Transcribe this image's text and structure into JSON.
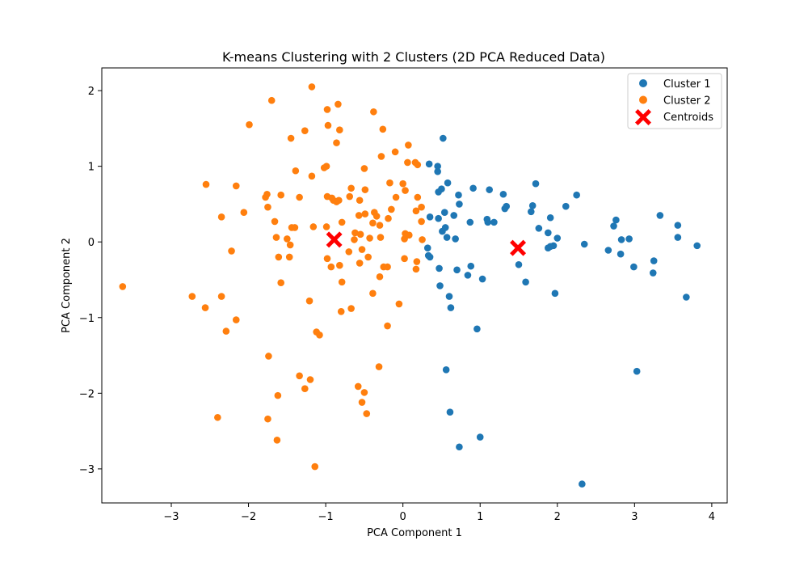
{
  "chart_data": {
    "type": "scatter",
    "title": "K-means Clustering with 2 Clusters (2D PCA Reduced Data)",
    "xlabel": "PCA Component 1",
    "ylabel": "PCA Component 2",
    "xlim": [
      -3.9,
      4.2
    ],
    "ylim": [
      -3.45,
      2.3
    ],
    "xticks": [
      -3,
      -2,
      -1,
      0,
      1,
      2,
      3,
      4
    ],
    "yticks": [
      -3,
      -2,
      -1,
      0,
      1,
      2
    ],
    "grid": false,
    "legend_position": "top-right",
    "series": [
      {
        "name": "Cluster 1",
        "color": "#1f77b4",
        "marker": "circle",
        "points": [
          [
            0.52,
            1.37
          ],
          [
            0.34,
            1.03
          ],
          [
            0.45,
            1.0
          ],
          [
            0.45,
            0.93
          ],
          [
            0.58,
            0.78
          ],
          [
            0.5,
            0.7
          ],
          [
            0.46,
            0.66
          ],
          [
            0.72,
            0.62
          ],
          [
            0.91,
            0.71
          ],
          [
            1.12,
            0.69
          ],
          [
            1.3,
            0.63
          ],
          [
            1.72,
            0.77
          ],
          [
            2.25,
            0.62
          ],
          [
            1.68,
            0.48
          ],
          [
            2.11,
            0.47
          ],
          [
            1.34,
            0.47
          ],
          [
            1.32,
            0.44
          ],
          [
            1.66,
            0.4
          ],
          [
            0.73,
            0.5
          ],
          [
            0.54,
            0.39
          ],
          [
            0.66,
            0.35
          ],
          [
            0.35,
            0.33
          ],
          [
            0.46,
            0.31
          ],
          [
            0.87,
            0.26
          ],
          [
            1.09,
            0.3
          ],
          [
            1.1,
            0.26
          ],
          [
            1.18,
            0.26
          ],
          [
            1.76,
            0.18
          ],
          [
            1.91,
            0.32
          ],
          [
            2.76,
            0.29
          ],
          [
            2.73,
            0.21
          ],
          [
            3.33,
            0.35
          ],
          [
            3.56,
            0.22
          ],
          [
            0.51,
            0.14
          ],
          [
            0.55,
            0.19
          ],
          [
            0.57,
            0.06
          ],
          [
            0.68,
            0.04
          ],
          [
            1.88,
            0.12
          ],
          [
            2.0,
            0.05
          ],
          [
            2.83,
            0.03
          ],
          [
            2.93,
            0.04
          ],
          [
            3.56,
            0.06
          ],
          [
            2.35,
            -0.03
          ],
          [
            1.88,
            -0.08
          ],
          [
            1.91,
            -0.06
          ],
          [
            1.95,
            -0.05
          ],
          [
            3.81,
            -0.05
          ],
          [
            0.32,
            -0.08
          ],
          [
            0.33,
            -0.18
          ],
          [
            0.35,
            -0.2
          ],
          [
            2.66,
            -0.11
          ],
          [
            2.82,
            -0.16
          ],
          [
            3.25,
            -0.25
          ],
          [
            1.5,
            -0.3
          ],
          [
            2.99,
            -0.33
          ],
          [
            3.24,
            -0.41
          ],
          [
            0.47,
            -0.35
          ],
          [
            0.7,
            -0.37
          ],
          [
            0.88,
            -0.32
          ],
          [
            0.84,
            -0.44
          ],
          [
            1.03,
            -0.49
          ],
          [
            1.59,
            -0.53
          ],
          [
            0.48,
            -0.58
          ],
          [
            0.6,
            -0.72
          ],
          [
            1.97,
            -0.68
          ],
          [
            3.67,
            -0.73
          ],
          [
            0.62,
            -0.87
          ],
          [
            0.96,
            -1.15
          ],
          [
            0.56,
            -1.69
          ],
          [
            3.03,
            -1.71
          ],
          [
            0.61,
            -2.25
          ],
          [
            1.0,
            -2.58
          ],
          [
            0.73,
            -2.71
          ],
          [
            2.32,
            -3.2
          ]
        ]
      },
      {
        "name": "Cluster 2",
        "color": "#ff7f0e",
        "marker": "circle",
        "points": [
          [
            -1.18,
            2.05
          ],
          [
            -1.7,
            1.87
          ],
          [
            -0.84,
            1.82
          ],
          [
            -0.98,
            1.75
          ],
          [
            -0.38,
            1.72
          ],
          [
            -1.99,
            1.55
          ],
          [
            -0.97,
            1.54
          ],
          [
            -0.82,
            1.48
          ],
          [
            -1.27,
            1.47
          ],
          [
            -0.26,
            1.49
          ],
          [
            -1.45,
            1.37
          ],
          [
            -0.86,
            1.31
          ],
          [
            0.07,
            1.28
          ],
          [
            -0.1,
            1.19
          ],
          [
            -0.28,
            1.13
          ],
          [
            0.06,
            1.05
          ],
          [
            0.16,
            1.05
          ],
          [
            0.19,
            1.02
          ],
          [
            -1.02,
            0.98
          ],
          [
            -0.99,
            1.0
          ],
          [
            -0.5,
            0.97
          ],
          [
            -1.39,
            0.94
          ],
          [
            -1.18,
            0.87
          ],
          [
            -0.17,
            0.78
          ],
          [
            0.0,
            0.77
          ],
          [
            -2.55,
            0.76
          ],
          [
            -2.16,
            0.74
          ],
          [
            -0.67,
            0.71
          ],
          [
            -0.49,
            0.69
          ],
          [
            0.03,
            0.68
          ],
          [
            -1.76,
            0.63
          ],
          [
            -1.58,
            0.62
          ],
          [
            -1.78,
            0.59
          ],
          [
            -1.34,
            0.59
          ],
          [
            -0.98,
            0.6
          ],
          [
            -0.92,
            0.58
          ],
          [
            -0.69,
            0.6
          ],
          [
            -0.09,
            0.59
          ],
          [
            0.19,
            0.59
          ],
          [
            -0.9,
            0.55
          ],
          [
            -0.86,
            0.53
          ],
          [
            -0.83,
            0.55
          ],
          [
            -0.56,
            0.55
          ],
          [
            -1.75,
            0.46
          ],
          [
            0.24,
            0.46
          ],
          [
            -0.15,
            0.43
          ],
          [
            0.17,
            0.41
          ],
          [
            -2.06,
            0.39
          ],
          [
            -0.37,
            0.39
          ],
          [
            -0.34,
            0.34
          ],
          [
            -0.57,
            0.35
          ],
          [
            -0.49,
            0.37
          ],
          [
            -0.19,
            0.31
          ],
          [
            -2.35,
            0.33
          ],
          [
            -1.66,
            0.27
          ],
          [
            -0.79,
            0.26
          ],
          [
            -0.39,
            0.25
          ],
          [
            -0.3,
            0.22
          ],
          [
            0.24,
            0.27
          ],
          [
            -1.44,
            0.19
          ],
          [
            -1.4,
            0.19
          ],
          [
            -1.16,
            0.2
          ],
          [
            -0.99,
            0.2
          ],
          [
            -0.62,
            0.12
          ],
          [
            -0.55,
            0.1
          ],
          [
            0.03,
            0.11
          ],
          [
            0.08,
            0.09
          ],
          [
            -1.64,
            0.06
          ],
          [
            -1.5,
            0.04
          ],
          [
            -0.63,
            0.03
          ],
          [
            -0.43,
            0.05
          ],
          [
            -0.29,
            0.06
          ],
          [
            0.02,
            0.04
          ],
          [
            0.25,
            0.03
          ],
          [
            -1.46,
            -0.04
          ],
          [
            -0.53,
            -0.1
          ],
          [
            -0.7,
            -0.13
          ],
          [
            -0.98,
            -0.22
          ],
          [
            -0.45,
            -0.2
          ],
          [
            -1.61,
            -0.2
          ],
          [
            -1.47,
            -0.2
          ],
          [
            -2.22,
            -0.12
          ],
          [
            -0.56,
            -0.28
          ],
          [
            0.02,
            -0.22
          ],
          [
            0.18,
            -0.26
          ],
          [
            -0.25,
            -0.33
          ],
          [
            -0.2,
            -0.33
          ],
          [
            -0.82,
            -0.31
          ],
          [
            -0.93,
            -0.33
          ],
          [
            0.17,
            -0.36
          ],
          [
            -0.3,
            -0.46
          ],
          [
            -0.79,
            -0.53
          ],
          [
            -1.58,
            -0.54
          ],
          [
            -3.63,
            -0.59
          ],
          [
            -0.39,
            -0.68
          ],
          [
            -2.73,
            -0.72
          ],
          [
            -2.35,
            -0.72
          ],
          [
            -1.21,
            -0.78
          ],
          [
            -0.05,
            -0.82
          ],
          [
            -2.56,
            -0.87
          ],
          [
            -0.67,
            -0.88
          ],
          [
            -0.8,
            -0.92
          ],
          [
            -2.16,
            -1.03
          ],
          [
            -0.2,
            -1.11
          ],
          [
            -2.29,
            -1.18
          ],
          [
            -1.12,
            -1.19
          ],
          [
            -1.08,
            -1.23
          ],
          [
            -1.74,
            -1.51
          ],
          [
            -0.31,
            -1.65
          ],
          [
            -1.34,
            -1.77
          ],
          [
            -1.2,
            -1.82
          ],
          [
            -0.58,
            -1.91
          ],
          [
            -1.27,
            -1.94
          ],
          [
            -0.5,
            -1.99
          ],
          [
            -1.62,
            -2.03
          ],
          [
            -0.53,
            -2.12
          ],
          [
            -0.47,
            -2.27
          ],
          [
            -1.75,
            -2.34
          ],
          [
            -2.4,
            -2.32
          ],
          [
            -1.63,
            -2.62
          ],
          [
            -1.14,
            -2.97
          ]
        ]
      },
      {
        "name": "Centroids",
        "color": "#ff0000",
        "marker": "x",
        "points": [
          [
            -0.89,
            0.03
          ],
          [
            1.49,
            -0.08
          ]
        ]
      }
    ]
  }
}
